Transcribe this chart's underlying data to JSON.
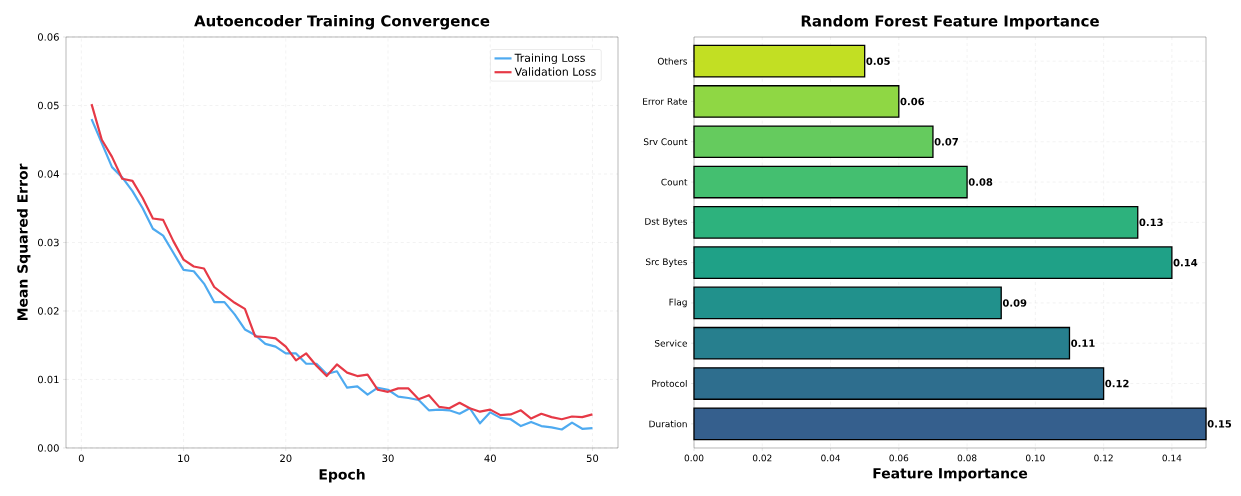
{
  "chart_data": [
    {
      "type": "line",
      "title": "Autoencoder Training Convergence",
      "xlabel": "Epoch",
      "ylabel": "Mean Squared Error",
      "x": [
        1,
        2,
        3,
        4,
        5,
        6,
        7,
        8,
        9,
        10,
        11,
        12,
        13,
        14,
        15,
        16,
        17,
        18,
        19,
        20,
        21,
        22,
        23,
        24,
        25,
        26,
        27,
        28,
        29,
        30,
        31,
        32,
        33,
        34,
        35,
        36,
        37,
        38,
        39,
        40,
        41,
        42,
        43,
        44,
        45,
        46,
        47,
        48,
        49,
        50
      ],
      "series": [
        {
          "name": "Training Loss",
          "color": "#4eaaf0",
          "values": [
            0.048,
            0.0445,
            0.041,
            0.0395,
            0.0375,
            0.035,
            0.032,
            0.031,
            0.0285,
            0.026,
            0.0258,
            0.024,
            0.0213,
            0.0213,
            0.0195,
            0.0173,
            0.0165,
            0.0152,
            0.0148,
            0.0138,
            0.0138,
            0.0123,
            0.0123,
            0.0108,
            0.0112,
            0.0088,
            0.009,
            0.0078,
            0.0088,
            0.0085,
            0.0075,
            0.0073,
            0.007,
            0.0055,
            0.0056,
            0.0055,
            0.005,
            0.0058,
            0.0036,
            0.0052,
            0.0044,
            0.0042,
            0.0032,
            0.0038,
            0.0032,
            0.003,
            0.0027,
            0.0037,
            0.0028,
            0.0029
          ]
        },
        {
          "name": "Validation Loss",
          "color": "#e63946",
          "values": [
            0.0502,
            0.045,
            0.0425,
            0.0393,
            0.039,
            0.0365,
            0.0335,
            0.0333,
            0.0302,
            0.0275,
            0.0265,
            0.0262,
            0.0235,
            0.0223,
            0.0212,
            0.0203,
            0.0163,
            0.0162,
            0.016,
            0.0148,
            0.0128,
            0.0138,
            0.012,
            0.0105,
            0.0122,
            0.011,
            0.0105,
            0.0107,
            0.0085,
            0.0082,
            0.0087,
            0.0087,
            0.0071,
            0.0077,
            0.006,
            0.0058,
            0.0066,
            0.0058,
            0.0053,
            0.0056,
            0.0048,
            0.0049,
            0.0055,
            0.0043,
            0.005,
            0.0045,
            0.0042,
            0.0046,
            0.0045,
            0.0049
          ]
        }
      ],
      "xlim": [
        -1.5,
        52.5
      ],
      "ylim": [
        0,
        0.06
      ],
      "xticks": [
        0,
        10,
        20,
        30,
        40,
        50
      ],
      "yticks": [
        {
          "value": 0,
          "label": "0.00"
        },
        {
          "value": 0.01,
          "label": "0.01"
        },
        {
          "value": 0.02,
          "label": "0.02"
        },
        {
          "value": 0.03,
          "label": "0.03"
        },
        {
          "value": 0.04,
          "label": "0.04"
        },
        {
          "value": 0.05,
          "label": "0.05"
        },
        {
          "value": 0.06,
          "label": "0.06"
        }
      ],
      "grid": true,
      "legend": "top right",
      "line_style": "solid"
    },
    {
      "type": "bar",
      "orientation": "horizontal",
      "title": "Random Forest Feature Importance",
      "xlabel": "Feature Importance",
      "categories": [
        "Others",
        "Error Rate",
        "Srv Count",
        "Count",
        "Dst Bytes",
        "Src Bytes",
        "Flag",
        "Service",
        "Protocol",
        "Duration"
      ],
      "values": [
        0.05,
        0.06,
        0.07,
        0.08,
        0.13,
        0.14,
        0.09,
        0.11,
        0.12,
        0.15
      ],
      "colors": [
        "#c2df23",
        "#8fd744",
        "#65cb5e",
        "#44bf70",
        "#2db27d",
        "#1fa187",
        "#21918c",
        "#277f8e",
        "#2e6e8e",
        "#355f8d"
      ],
      "xlim": [
        0,
        0.15
      ],
      "xticks": [
        {
          "value": 0,
          "label": "0.00"
        },
        {
          "value": 0.02,
          "label": "0.02"
        },
        {
          "value": 0.04,
          "label": "0.04"
        },
        {
          "value": 0.06,
          "label": "0.06"
        },
        {
          "value": 0.08,
          "label": "0.08"
        },
        {
          "value": 0.1,
          "label": "0.10"
        },
        {
          "value": 0.12,
          "label": "0.12"
        },
        {
          "value": 0.14,
          "label": "0.14"
        }
      ],
      "grid": true,
      "data_labels": true
    }
  ]
}
